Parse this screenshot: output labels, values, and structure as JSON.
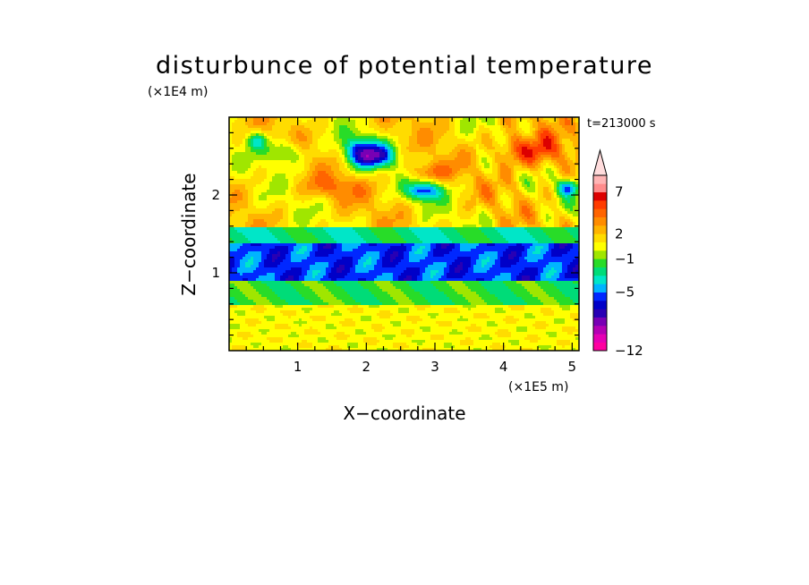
{
  "chart_data": {
    "type": "heatmap",
    "title": "disturbunce of potential temperature",
    "xlabel": "X−coordinate",
    "ylabel": "Z−coordinate",
    "x_unit": "(×1E5 m)",
    "y_unit": "(×1E4 m)",
    "time_label": "t=213000 s",
    "xlim": [
      0,
      5.1
    ],
    "ylim": [
      0,
      3.0
    ],
    "x_ticks": [
      1,
      2,
      3,
      4,
      5
    ],
    "y_ticks": [
      1,
      2
    ],
    "x_tick_labels": [
      "1",
      "2",
      "3",
      "4",
      "5"
    ],
    "y_tick_labels": [
      "1",
      "2"
    ],
    "colorbar": {
      "levels": [
        -12,
        -11,
        -10,
        -9,
        -8,
        -7,
        -6,
        -5,
        -4,
        -3,
        -2,
        -1,
        0,
        1,
        2,
        3,
        4,
        5,
        6,
        7,
        8,
        9,
        10
      ],
      "tick_values": [
        -12,
        -5,
        -1,
        2,
        7
      ],
      "tick_labels": [
        "−12",
        "−5",
        "−1",
        "2",
        "7"
      ],
      "extend": "max",
      "colors": [
        "#ff00a0",
        "#e600b4",
        "#b400b4",
        "#7800b4",
        "#2800b4",
        "#0000c8",
        "#0028ff",
        "#00b4ff",
        "#00e6c8",
        "#00dc78",
        "#28dc28",
        "#a0e600",
        "#ffff00",
        "#ffdc00",
        "#ffb400",
        "#ff8c00",
        "#ff6400",
        "#ff3c00",
        "#dc0000",
        "#ff8c8c",
        "#ffb4b4",
        "#ffdcdc"
      ]
    },
    "field_description": [
      {
        "z_range": [
          0.0,
          0.6
        ],
        "value": 0.5
      },
      {
        "z_range": [
          0.6,
          0.9
        ],
        "value": -2
      },
      {
        "z_range": [
          0.9,
          1.35
        ],
        "value": -6
      },
      {
        "z_range": [
          1.35,
          1.6
        ],
        "value": -3
      },
      {
        "z_range": [
          1.6,
          3.0
        ],
        "value": 2
      }
    ]
  }
}
